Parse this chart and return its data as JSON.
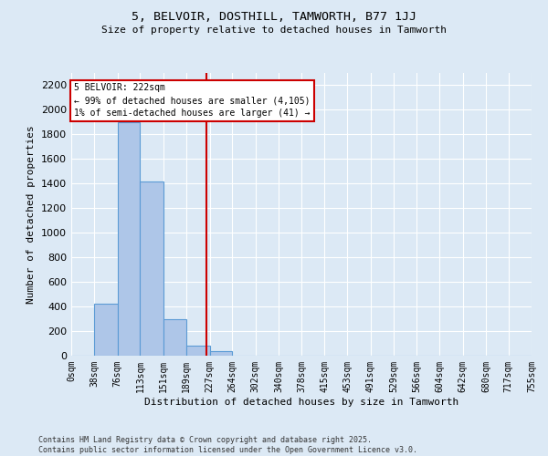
{
  "title": "5, BELVOIR, DOSTHILL, TAMWORTH, B77 1JJ",
  "subtitle": "Size of property relative to detached houses in Tamworth",
  "xlabel": "Distribution of detached houses by size in Tamworth",
  "ylabel": "Number of detached properties",
  "property_size": 222,
  "property_label": "5 BELVOIR: 222sqm",
  "annotation_line1": "← 99% of detached houses are smaller (4,105)",
  "annotation_line2": "1% of semi-detached houses are larger (41) →",
  "footer_line1": "Contains HM Land Registry data © Crown copyright and database right 2025.",
  "footer_line2": "Contains public sector information licensed under the Open Government Licence v3.0.",
  "bin_edges": [
    0,
    38,
    76,
    113,
    151,
    189,
    227,
    264,
    302,
    340,
    378,
    415,
    453,
    491,
    529,
    566,
    604,
    642,
    680,
    717,
    755
  ],
  "bin_labels": [
    "0sqm",
    "38sqm",
    "76sqm",
    "113sqm",
    "151sqm",
    "189sqm",
    "227sqm",
    "264sqm",
    "302sqm",
    "340sqm",
    "378sqm",
    "415sqm",
    "453sqm",
    "491sqm",
    "529sqm",
    "566sqm",
    "604sqm",
    "642sqm",
    "680sqm",
    "717sqm",
    "755sqm"
  ],
  "bar_heights": [
    0,
    420,
    1900,
    1420,
    300,
    80,
    40,
    0,
    0,
    0,
    0,
    0,
    0,
    0,
    0,
    0,
    0,
    0,
    0,
    0
  ],
  "bar_color": "#aec6e8",
  "bar_edge_color": "#5b9bd5",
  "line_color": "#cc0000",
  "bg_color": "#dce9f5",
  "ylim": [
    0,
    2300
  ],
  "yticks": [
    0,
    200,
    400,
    600,
    800,
    1000,
    1200,
    1400,
    1600,
    1800,
    2000,
    2200
  ]
}
